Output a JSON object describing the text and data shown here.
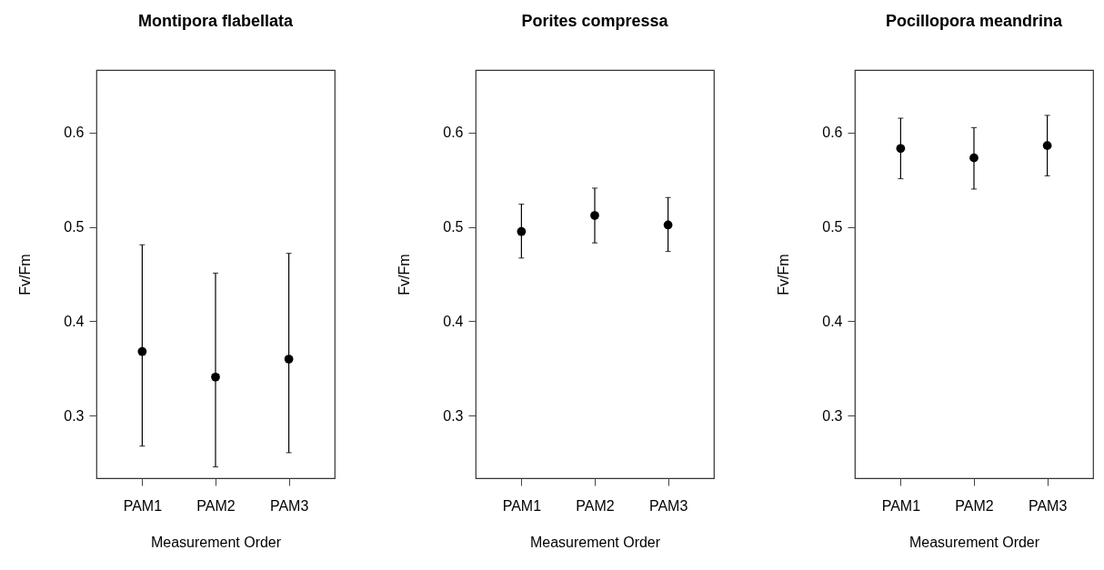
{
  "chart_data": [
    {
      "type": "scatter",
      "title": "Montipora flabellata",
      "xlabel": "Measurement Order",
      "ylabel": "Fv/Fm",
      "categories": [
        "PAM1",
        "PAM2",
        "PAM3"
      ],
      "values": [
        0.368,
        0.341,
        0.36
      ],
      "errors": [
        [
          0.268,
          0.481
        ],
        [
          0.246,
          0.451
        ],
        [
          0.261,
          0.472
        ]
      ],
      "color": "#000000",
      "marker": "circle",
      "ylim": [
        0.234,
        0.666
      ],
      "yticks": [
        0.3,
        0.4,
        0.5,
        0.6
      ]
    },
    {
      "type": "scatter",
      "title": "Porites compressa",
      "xlabel": "Measurement Order",
      "ylabel": "Fv/Fm",
      "categories": [
        "PAM1",
        "PAM2",
        "PAM3"
      ],
      "values": [
        0.495,
        0.512,
        0.502
      ],
      "errors": [
        [
          0.467,
          0.524
        ],
        [
          0.483,
          0.541
        ],
        [
          0.474,
          0.531
        ]
      ],
      "color": "#000000",
      "marker": "circle",
      "ylim": [
        0.234,
        0.666
      ],
      "yticks": [
        0.3,
        0.4,
        0.5,
        0.6
      ]
    },
    {
      "type": "scatter",
      "title": "Pocillopora meandrina",
      "xlabel": "Measurement Order",
      "ylabel": "Fv/Fm",
      "categories": [
        "PAM1",
        "PAM2",
        "PAM3"
      ],
      "values": [
        0.583,
        0.573,
        0.586
      ],
      "errors": [
        [
          0.551,
          0.615
        ],
        [
          0.54,
          0.605
        ],
        [
          0.554,
          0.618
        ]
      ],
      "color": "#000000",
      "marker": "circle",
      "ylim": [
        0.234,
        0.666
      ],
      "yticks": [
        0.3,
        0.4,
        0.5,
        0.6
      ]
    }
  ]
}
